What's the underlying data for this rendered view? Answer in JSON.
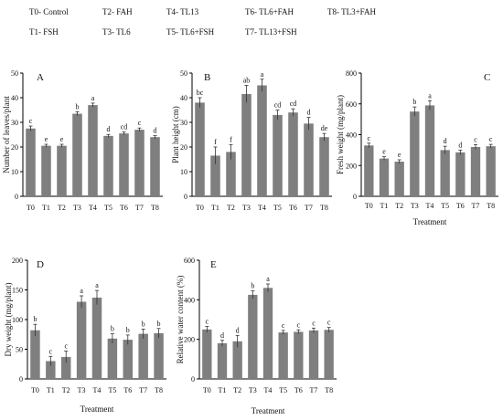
{
  "legend": [
    "T0- Control",
    "T2- FAH",
    "T4- TL13",
    "T6- TL6+FAH",
    "T8- TL3+FAH",
    "T1- FSH",
    "T3- TL6",
    "T5- TL6+FSH",
    "T7- TL13+FSH"
  ],
  "colors": {
    "bar": "#7f7f7f",
    "axis": "#000000",
    "text": "#111111"
  },
  "chart_data": [
    {
      "type": "bar",
      "panel_letter": "A",
      "categories": [
        "T0",
        "T1",
        "T2",
        "T3",
        "T4",
        "T5",
        "T6",
        "T7",
        "T8"
      ],
      "values": [
        27.5,
        20.5,
        20.5,
        33.5,
        37,
        24.5,
        25.5,
        27,
        24
      ],
      "errors": [
        1,
        0.6,
        0.6,
        0.8,
        0.8,
        0.6,
        0.6,
        0.7,
        0.6
      ],
      "letters": [
        "c",
        "e",
        "e",
        "b",
        "a",
        "d",
        "cd",
        "c",
        "d"
      ],
      "ylabel": "Number of leaves/plant",
      "xlabel": "",
      "ylim": [
        0,
        50
      ],
      "yticks": [
        0,
        10,
        20,
        30,
        40,
        50
      ]
    },
    {
      "type": "bar",
      "panel_letter": "B",
      "categories": [
        "T0",
        "T1",
        "T2",
        "T3",
        "T4",
        "T5",
        "T6",
        "T7",
        "T8"
      ],
      "values": [
        38,
        16.5,
        18,
        41.5,
        45,
        33,
        34,
        29.5,
        24
      ],
      "errors": [
        2,
        3.5,
        3,
        3.5,
        2.5,
        2,
        1.5,
        2.5,
        1.5
      ],
      "letters": [
        "bc",
        "f",
        "f",
        "ab",
        "a",
        "cd",
        "cd",
        "d",
        "de"
      ],
      "ylabel": "Plant height (cm)",
      "xlabel": "",
      "ylim": [
        0,
        50
      ],
      "yticks": [
        0,
        10,
        20,
        30,
        40,
        50
      ]
    },
    {
      "type": "bar",
      "panel_letter": "C",
      "categories": [
        "T0",
        "T1",
        "T2",
        "T3",
        "T4",
        "T5",
        "T6",
        "T7",
        "T8"
      ],
      "values": [
        330,
        245,
        225,
        550,
        590,
        300,
        285,
        320,
        325
      ],
      "errors": [
        15,
        12,
        12,
        30,
        30,
        25,
        15,
        15,
        12
      ],
      "letters": [
        "c",
        "e",
        "e",
        "b",
        "a",
        "d",
        "d",
        "c",
        "c"
      ],
      "ylabel": "Fresh weight (mg/plant)",
      "xlabel": "Treatment",
      "ylim": [
        0,
        800
      ],
      "yticks": [
        0,
        200,
        400,
        600,
        800
      ]
    },
    {
      "type": "bar",
      "panel_letter": "D",
      "categories": [
        "T0",
        "T1",
        "T2",
        "T3",
        "T4",
        "T5",
        "T6",
        "T7",
        "T8"
      ],
      "values": [
        82,
        30,
        37,
        130,
        137,
        68,
        66,
        76,
        77
      ],
      "errors": [
        10,
        8,
        10,
        10,
        12,
        8,
        8,
        8,
        8
      ],
      "letters": [
        "b",
        "c",
        "c",
        "a",
        "a",
        "b",
        "b",
        "b",
        "b"
      ],
      "ylabel": "Dry weight (mg/plant)",
      "xlabel": "Treatment",
      "ylim": [
        0,
        200
      ],
      "yticks": [
        0,
        50,
        100,
        150,
        200
      ]
    },
    {
      "type": "bar",
      "panel_letter": "E",
      "categories": [
        "T0",
        "T1",
        "T2",
        "T3",
        "T4",
        "T5",
        "T6",
        "T7",
        "T8"
      ],
      "values": [
        250,
        180,
        190,
        425,
        460,
        235,
        238,
        245,
        248
      ],
      "errors": [
        15,
        15,
        30,
        20,
        20,
        10,
        10,
        12,
        12
      ],
      "letters": [
        "c",
        "d",
        "d",
        "b",
        "a",
        "c",
        "c",
        "c",
        "c"
      ],
      "ylabel": "Relative water content (%)",
      "xlabel": "Treatment",
      "ylim": [
        0,
        600
      ],
      "yticks": [
        0,
        200,
        400,
        600
      ]
    }
  ]
}
